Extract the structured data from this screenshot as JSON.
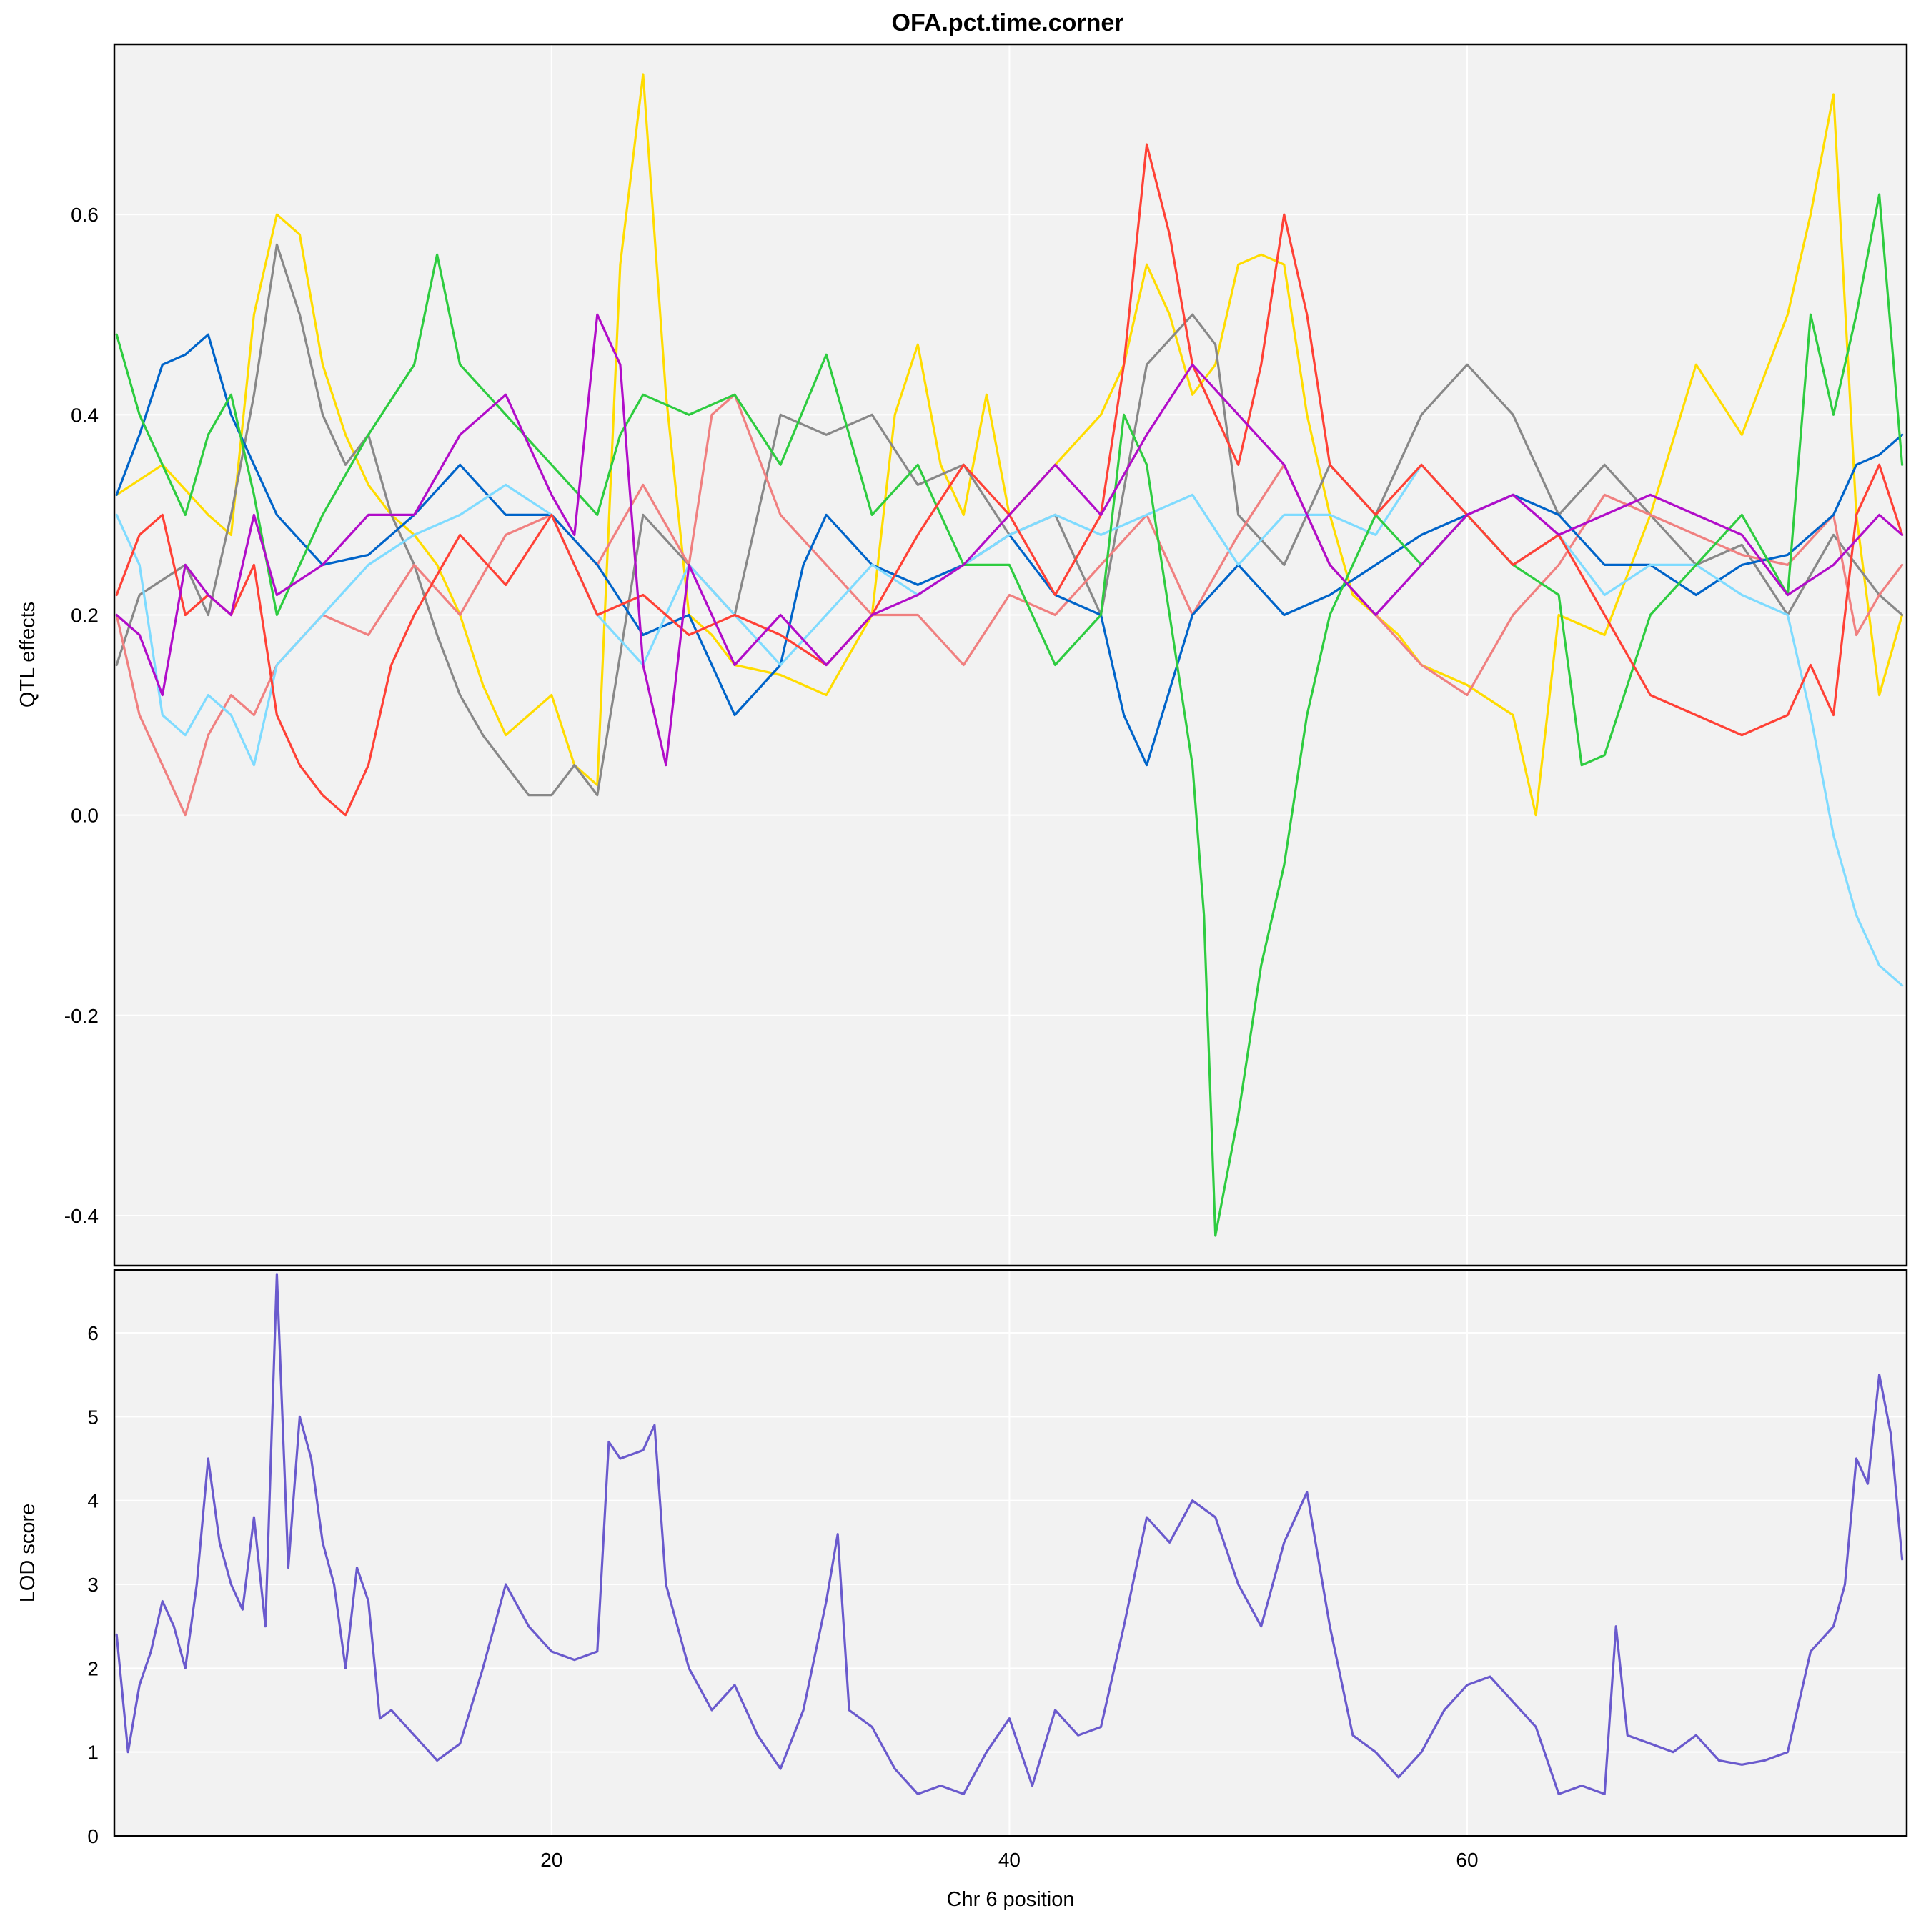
{
  "chart_data": [
    {
      "type": "line",
      "panel": "top",
      "title": "OFA.pct.time.corner",
      "ylabel": "QTL effects",
      "xlim": [
        0.9,
        79.2
      ],
      "ylim": [
        -0.45,
        0.77
      ],
      "yticks": [
        -0.4,
        -0.2,
        0.0,
        0.2,
        0.4,
        0.6
      ],
      "ytick_labels": [
        "-0.4",
        "-0.2",
        "0.0",
        "0.2",
        "0.4",
        "0.6"
      ],
      "xticks": [
        20,
        40,
        60
      ],
      "grid": true,
      "background": "#f2f2f2",
      "series_colors": [
        "#FFDC00",
        "#888888",
        "#F08080",
        "#0064C9",
        "#7FDBFF",
        "#2ECC40",
        "#FF4136",
        "#B10DC9"
      ],
      "series": [
        {
          "color": "#FFDC00",
          "x": [
            1,
            3,
            5,
            6,
            7,
            8,
            9,
            10,
            11,
            12,
            13,
            14,
            15,
            16,
            17,
            18,
            19,
            20,
            21,
            22,
            23,
            24,
            25,
            26,
            27,
            28,
            30,
            32,
            34,
            35,
            36,
            37,
            38,
            39,
            40,
            42,
            44,
            45,
            46,
            47,
            48,
            49,
            50,
            51,
            52,
            53,
            54,
            55,
            56,
            57,
            58,
            60,
            62,
            63,
            64,
            66,
            68,
            70,
            72,
            74,
            75,
            76,
            77,
            78,
            79
          ],
          "y": [
            0.32,
            0.35,
            0.3,
            0.28,
            0.5,
            0.6,
            0.58,
            0.45,
            0.38,
            0.33,
            0.3,
            0.28,
            0.25,
            0.2,
            0.13,
            0.08,
            0.1,
            0.12,
            0.05,
            0.03,
            0.55,
            0.74,
            0.42,
            0.2,
            0.18,
            0.15,
            0.14,
            0.12,
            0.2,
            0.4,
            0.47,
            0.35,
            0.3,
            0.42,
            0.3,
            0.35,
            0.4,
            0.45,
            0.55,
            0.5,
            0.42,
            0.45,
            0.55,
            0.56,
            0.55,
            0.4,
            0.3,
            0.22,
            0.2,
            0.18,
            0.15,
            0.13,
            0.1,
            0.0,
            0.2,
            0.18,
            0.3,
            0.45,
            0.38,
            0.5,
            0.6,
            0.72,
            0.3,
            0.12,
            0.2
          ]
        },
        {
          "color": "#888888",
          "x": [
            1,
            2,
            4,
            5,
            6,
            7,
            8,
            9,
            10,
            11,
            12,
            13,
            14,
            15,
            16,
            17,
            18,
            19,
            20,
            21,
            22,
            24,
            26,
            28,
            30,
            32,
            34,
            36,
            38,
            40,
            42,
            44,
            46,
            48,
            49,
            50,
            52,
            54,
            56,
            58,
            60,
            62,
            64,
            66,
            68,
            70,
            72,
            74,
            76,
            78,
            79
          ],
          "y": [
            0.15,
            0.22,
            0.25,
            0.2,
            0.3,
            0.42,
            0.57,
            0.5,
            0.4,
            0.35,
            0.38,
            0.3,
            0.25,
            0.18,
            0.12,
            0.08,
            0.05,
            0.02,
            0.02,
            0.05,
            0.02,
            0.3,
            0.25,
            0.2,
            0.4,
            0.38,
            0.4,
            0.33,
            0.35,
            0.28,
            0.3,
            0.2,
            0.45,
            0.5,
            0.47,
            0.3,
            0.25,
            0.35,
            0.3,
            0.4,
            0.45,
            0.4,
            0.3,
            0.35,
            0.3,
            0.25,
            0.27,
            0.2,
            0.28,
            0.22,
            0.2
          ]
        },
        {
          "color": "#F08080",
          "x": [
            1,
            2,
            3,
            4,
            5,
            6,
            7,
            8,
            10,
            12,
            14,
            16,
            18,
            20,
            22,
            24,
            26,
            27,
            28,
            30,
            32,
            34,
            36,
            38,
            40,
            42,
            44,
            46,
            48,
            50,
            52,
            54,
            56,
            58,
            60,
            62,
            64,
            66,
            68,
            70,
            72,
            74,
            76,
            77,
            78,
            79
          ],
          "y": [
            0.2,
            0.1,
            0.05,
            0.0,
            0.08,
            0.12,
            0.1,
            0.15,
            0.2,
            0.18,
            0.25,
            0.2,
            0.28,
            0.3,
            0.25,
            0.33,
            0.25,
            0.4,
            0.42,
            0.3,
            0.25,
            0.2,
            0.2,
            0.15,
            0.22,
            0.2,
            0.25,
            0.3,
            0.2,
            0.28,
            0.35,
            0.25,
            0.2,
            0.15,
            0.12,
            0.2,
            0.25,
            0.32,
            0.3,
            0.28,
            0.26,
            0.25,
            0.3,
            0.18,
            0.22,
            0.25
          ]
        },
        {
          "color": "#0064C9",
          "x": [
            1,
            2,
            3,
            4,
            5,
            6,
            8,
            10,
            12,
            14,
            16,
            18,
            20,
            22,
            24,
            26,
            28,
            30,
            31,
            32,
            34,
            36,
            38,
            40,
            42,
            44,
            45,
            46,
            48,
            50,
            52,
            54,
            56,
            58,
            60,
            62,
            64,
            66,
            68,
            70,
            72,
            74,
            76,
            77,
            78,
            79
          ],
          "y": [
            0.32,
            0.38,
            0.45,
            0.46,
            0.48,
            0.4,
            0.3,
            0.25,
            0.26,
            0.3,
            0.35,
            0.3,
            0.3,
            0.25,
            0.18,
            0.2,
            0.1,
            0.15,
            0.25,
            0.3,
            0.25,
            0.23,
            0.25,
            0.28,
            0.22,
            0.2,
            0.1,
            0.05,
            0.2,
            0.25,
            0.2,
            0.22,
            0.25,
            0.28,
            0.3,
            0.32,
            0.3,
            0.25,
            0.25,
            0.22,
            0.25,
            0.26,
            0.3,
            0.35,
            0.36,
            0.38
          ]
        },
        {
          "color": "#7FDBFF",
          "x": [
            1,
            2,
            3,
            4,
            5,
            6,
            7,
            8,
            10,
            12,
            14,
            16,
            18,
            20,
            22,
            24,
            26,
            28,
            30,
            32,
            34,
            36,
            38,
            40,
            42,
            44,
            46,
            48,
            50,
            52,
            54,
            56,
            58,
            60,
            62,
            64,
            66,
            68,
            70,
            72,
            74,
            75,
            76,
            77,
            78,
            79
          ],
          "y": [
            0.3,
            0.25,
            0.1,
            0.08,
            0.12,
            0.1,
            0.05,
            0.15,
            0.2,
            0.25,
            0.28,
            0.3,
            0.33,
            0.3,
            0.2,
            0.15,
            0.25,
            0.2,
            0.15,
            0.2,
            0.25,
            0.22,
            0.25,
            0.28,
            0.3,
            0.28,
            0.3,
            0.32,
            0.25,
            0.3,
            0.3,
            0.28,
            0.35,
            0.3,
            0.25,
            0.28,
            0.22,
            0.25,
            0.25,
            0.22,
            0.2,
            0.1,
            -0.02,
            -0.1,
            -0.15,
            -0.17
          ]
        },
        {
          "color": "#2ECC40",
          "x": [
            1,
            2,
            3,
            4,
            5,
            6,
            7,
            8,
            10,
            12,
            14,
            15,
            16,
            18,
            20,
            22,
            23,
            24,
            26,
            28,
            30,
            32,
            34,
            36,
            38,
            40,
            42,
            44,
            45,
            46,
            47,
            48,
            48.5,
            49,
            50,
            51,
            52,
            53,
            54,
            56,
            58,
            60,
            62,
            64,
            65,
            66,
            68,
            70,
            72,
            74,
            75,
            76,
            77,
            78,
            79
          ],
          "y": [
            0.48,
            0.4,
            0.35,
            0.3,
            0.38,
            0.42,
            0.32,
            0.2,
            0.3,
            0.38,
            0.45,
            0.56,
            0.45,
            0.4,
            0.35,
            0.3,
            0.38,
            0.42,
            0.4,
            0.42,
            0.35,
            0.46,
            0.3,
            0.35,
            0.25,
            0.25,
            0.15,
            0.2,
            0.4,
            0.35,
            0.2,
            0.05,
            -0.1,
            -0.42,
            -0.3,
            -0.15,
            -0.05,
            0.1,
            0.2,
            0.3,
            0.25,
            0.3,
            0.25,
            0.22,
            0.05,
            0.06,
            0.2,
            0.25,
            0.3,
            0.22,
            0.5,
            0.4,
            0.5,
            0.62,
            0.35
          ]
        },
        {
          "color": "#FF4136",
          "x": [
            1,
            2,
            3,
            4,
            5,
            6,
            7,
            8,
            9,
            10,
            11,
            12,
            13,
            14,
            16,
            18,
            20,
            22,
            24,
            26,
            28,
            30,
            32,
            34,
            36,
            38,
            40,
            42,
            44,
            45,
            46,
            47,
            48,
            49,
            50,
            51,
            52,
            53,
            54,
            56,
            58,
            60,
            62,
            64,
            66,
            68,
            70,
            72,
            74,
            75,
            76,
            77,
            78,
            79
          ],
          "y": [
            0.22,
            0.28,
            0.3,
            0.2,
            0.22,
            0.2,
            0.25,
            0.1,
            0.05,
            0.02,
            0.0,
            0.05,
            0.15,
            0.2,
            0.28,
            0.23,
            0.3,
            0.2,
            0.22,
            0.18,
            0.2,
            0.18,
            0.15,
            0.2,
            0.28,
            0.35,
            0.3,
            0.22,
            0.3,
            0.45,
            0.67,
            0.58,
            0.45,
            0.4,
            0.35,
            0.45,
            0.6,
            0.5,
            0.35,
            0.3,
            0.35,
            0.3,
            0.25,
            0.28,
            0.2,
            0.12,
            0.1,
            0.08,
            0.1,
            0.15,
            0.1,
            0.3,
            0.35,
            0.28
          ]
        },
        {
          "color": "#B10DC9",
          "x": [
            1,
            2,
            3,
            4,
            5,
            6,
            7,
            8,
            10,
            12,
            14,
            16,
            18,
            20,
            21,
            22,
            23,
            24,
            25,
            26,
            28,
            30,
            32,
            34,
            36,
            38,
            40,
            42,
            44,
            46,
            48,
            50,
            52,
            54,
            56,
            58,
            60,
            62,
            64,
            66,
            68,
            70,
            72,
            74,
            76,
            78,
            79
          ],
          "y": [
            0.2,
            0.18,
            0.12,
            0.25,
            0.22,
            0.2,
            0.3,
            0.22,
            0.25,
            0.3,
            0.3,
            0.38,
            0.42,
            0.32,
            0.28,
            0.5,
            0.45,
            0.15,
            0.05,
            0.25,
            0.15,
            0.2,
            0.15,
            0.2,
            0.22,
            0.25,
            0.3,
            0.35,
            0.3,
            0.38,
            0.45,
            0.4,
            0.35,
            0.25,
            0.2,
            0.25,
            0.3,
            0.32,
            0.28,
            0.3,
            0.32,
            0.3,
            0.28,
            0.22,
            0.25,
            0.3,
            0.28
          ]
        }
      ]
    },
    {
      "type": "line",
      "panel": "bottom",
      "ylabel": "LOD score",
      "xlabel": "Chr 6 position",
      "xlim": [
        0.9,
        79.2
      ],
      "ylim": [
        0,
        6.75
      ],
      "yticks": [
        0,
        1,
        2,
        3,
        4,
        5,
        6
      ],
      "ytick_labels": [
        "0",
        "1",
        "2",
        "3",
        "4",
        "5",
        "6"
      ],
      "xticks": [
        20,
        40,
        60
      ],
      "xtick_labels": [
        "20",
        "40",
        "60"
      ],
      "grid": true,
      "background": "#f2f2f2",
      "series": [
        {
          "color": "#6A5ACD",
          "x": [
            1,
            1.5,
            2,
            2.5,
            3,
            3.5,
            4,
            4.5,
            5,
            5.5,
            6,
            6.5,
            7,
            7.5,
            8,
            8.5,
            9,
            9.5,
            10,
            10.5,
            11,
            11.5,
            12,
            12.5,
            13,
            14,
            15,
            16,
            17,
            18,
            19,
            20,
            21,
            22,
            22.5,
            23,
            24,
            24.5,
            25,
            26,
            27,
            28,
            29,
            30,
            31,
            32,
            32.5,
            33,
            34,
            35,
            36,
            37,
            38,
            39,
            40,
            41,
            42,
            43,
            44,
            45,
            46,
            47,
            48,
            49,
            50,
            51,
            52,
            53,
            54,
            55,
            56,
            57,
            58,
            59,
            60,
            61,
            62,
            63,
            64,
            65,
            66,
            66.5,
            67,
            68,
            69,
            70,
            71,
            72,
            73,
            74,
            75,
            76,
            76.5,
            77,
            77.5,
            78,
            78.5,
            79
          ],
          "y": [
            2.4,
            1.0,
            1.8,
            2.2,
            2.8,
            2.5,
            2.0,
            3.0,
            4.5,
            3.5,
            3.0,
            2.7,
            3.8,
            2.5,
            6.7,
            3.2,
            5.0,
            4.5,
            3.5,
            3.0,
            2.0,
            3.2,
            2.8,
            1.4,
            1.5,
            1.2,
            0.9,
            1.1,
            2.0,
            3.0,
            2.5,
            2.2,
            2.1,
            2.2,
            4.7,
            4.5,
            4.6,
            4.9,
            3.0,
            2.0,
            1.5,
            1.8,
            1.2,
            0.8,
            1.5,
            2.8,
            3.6,
            1.5,
            1.3,
            0.8,
            0.5,
            0.6,
            0.5,
            1.0,
            1.4,
            0.6,
            1.5,
            1.2,
            1.3,
            2.5,
            3.8,
            3.5,
            4.0,
            3.8,
            3.0,
            2.5,
            3.5,
            4.1,
            2.5,
            1.2,
            1.0,
            0.7,
            1.0,
            1.5,
            1.8,
            1.9,
            1.6,
            1.3,
            0.5,
            0.6,
            0.5,
            2.5,
            1.2,
            1.1,
            1.0,
            1.2,
            0.9,
            0.85,
            0.9,
            1.0,
            2.2,
            2.5,
            3.0,
            4.5,
            4.2,
            5.5,
            4.8,
            3.3
          ]
        }
      ]
    }
  ]
}
